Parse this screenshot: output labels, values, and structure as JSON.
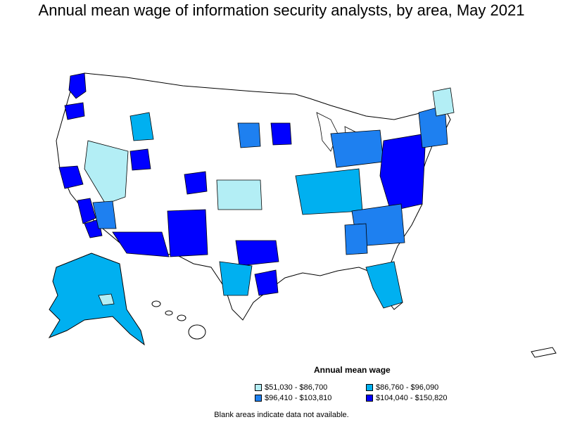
{
  "title": "Annual mean wage of information security analysts, by area, May 2021",
  "legend": {
    "title": "Annual mean wage",
    "items": [
      {
        "label": "$51,030 - $86,700",
        "color": "#b3eef5"
      },
      {
        "label": "$86,760 - $96,090",
        "color": "#00b0f0"
      },
      {
        "label": "$96,410 - $103,810",
        "color": "#1e80f0"
      },
      {
        "label": "$104,040 - $150,820",
        "color": "#0000ff"
      }
    ]
  },
  "footnote": "Blank areas indicate data not available.",
  "colors": {
    "outline": "#000000",
    "no_data": "#ffffff"
  },
  "regions": [
    {
      "name": "puget-sound",
      "class": 3
    },
    {
      "name": "portland",
      "class": 3
    },
    {
      "name": "boise",
      "class": 1
    },
    {
      "name": "nevada-nonmetro",
      "class": 0
    },
    {
      "name": "bay-area",
      "class": 3
    },
    {
      "name": "los-angeles",
      "class": 3
    },
    {
      "name": "san-diego",
      "class": 3
    },
    {
      "name": "inland-empire",
      "class": 2
    },
    {
      "name": "salt-lake",
      "class": 3
    },
    {
      "name": "denver",
      "class": 3
    },
    {
      "name": "arizona-south",
      "class": 3
    },
    {
      "name": "new-mexico",
      "class": 3
    },
    {
      "name": "kansas",
      "class": 0
    },
    {
      "name": "dakotas",
      "class": 2
    },
    {
      "name": "minneapolis",
      "class": 3
    },
    {
      "name": "texas-north",
      "class": 3
    },
    {
      "name": "texas-central",
      "class": 1
    },
    {
      "name": "houston",
      "class": 3
    },
    {
      "name": "midwest-belt",
      "class": 1
    },
    {
      "name": "great-lakes",
      "class": 2
    },
    {
      "name": "northeast-corridor",
      "class": 3
    },
    {
      "name": "new-england",
      "class": 2
    },
    {
      "name": "maine",
      "class": 0
    },
    {
      "name": "carolinas",
      "class": 2
    },
    {
      "name": "atlanta",
      "class": 2
    },
    {
      "name": "florida",
      "class": 1
    },
    {
      "name": "alaska",
      "class": 1
    },
    {
      "name": "hawaii",
      "class": 0
    }
  ]
}
